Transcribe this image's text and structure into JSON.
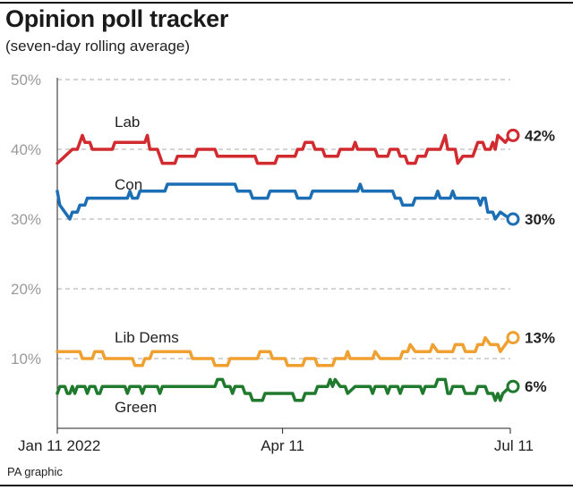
{
  "title": "Opinion poll tracker",
  "subtitle": "(seven-day rolling average)",
  "credit": "PA graphic",
  "chart_data": {
    "type": "line",
    "title": "Opinion poll tracker",
    "subtitle": "(seven-day rolling average)",
    "xlabel": "",
    "ylabel": "",
    "ylim": [
      0,
      50
    ],
    "y_ticks": [
      "50%",
      "40%",
      "30%",
      "20%",
      "10%"
    ],
    "y_tick_values": [
      50,
      40,
      30,
      20,
      10
    ],
    "x_ticks": [
      "Jan 11 2022",
      "Apr 11",
      "Jul 11"
    ],
    "x_tick_days": [
      0,
      90,
      181
    ],
    "x_range_days": [
      0,
      181
    ],
    "grid": "horizontal dashed",
    "legend": "inline labels",
    "series": [
      {
        "name": "Lab",
        "color": "#d12a2f",
        "end_label": "42%",
        "points": [
          [
            0,
            38
          ],
          [
            3,
            39
          ],
          [
            6,
            40
          ],
          [
            8,
            40
          ],
          [
            9,
            41
          ],
          [
            10,
            42
          ],
          [
            11,
            41
          ],
          [
            13,
            41
          ],
          [
            14,
            40
          ],
          [
            22,
            40
          ],
          [
            23,
            41
          ],
          [
            35,
            41
          ],
          [
            36,
            42
          ],
          [
            37,
            40
          ],
          [
            40,
            40
          ],
          [
            41,
            39
          ],
          [
            42,
            38
          ],
          [
            47,
            38
          ],
          [
            48,
            39
          ],
          [
            55,
            39
          ],
          [
            56,
            40
          ],
          [
            63,
            40
          ],
          [
            64,
            39
          ],
          [
            79,
            39
          ],
          [
            80,
            38
          ],
          [
            87,
            38
          ],
          [
            88,
            39
          ],
          [
            95,
            39
          ],
          [
            96,
            40
          ],
          [
            98,
            40
          ],
          [
            99,
            41
          ],
          [
            102,
            41
          ],
          [
            103,
            40
          ],
          [
            106,
            40
          ],
          [
            107,
            39
          ],
          [
            112,
            39
          ],
          [
            113,
            40
          ],
          [
            118,
            40
          ],
          [
            119,
            41
          ],
          [
            120,
            40
          ],
          [
            127,
            40
          ],
          [
            128,
            39
          ],
          [
            132,
            39
          ],
          [
            133,
            40
          ],
          [
            136,
            40
          ],
          [
            137,
            39
          ],
          [
            139,
            39
          ],
          [
            140,
            38
          ],
          [
            143,
            38
          ],
          [
            144,
            39
          ],
          [
            147,
            39
          ],
          [
            148,
            40
          ],
          [
            153,
            40
          ],
          [
            154,
            41
          ],
          [
            155,
            42
          ],
          [
            156,
            40
          ],
          [
            159,
            40
          ],
          [
            160,
            38
          ],
          [
            162,
            39
          ],
          [
            166,
            39
          ],
          [
            167,
            40
          ],
          [
            168,
            41
          ],
          [
            170,
            41
          ],
          [
            171,
            40
          ],
          [
            173,
            40
          ],
          [
            174,
            41
          ],
          [
            175,
            40
          ],
          [
            176,
            42
          ],
          [
            179,
            41
          ],
          [
            181,
            42
          ]
        ]
      },
      {
        "name": "Con",
        "color": "#1c6fb5",
        "end_label": "30%",
        "points": [
          [
            0,
            34
          ],
          [
            1,
            32
          ],
          [
            3,
            31
          ],
          [
            5,
            30
          ],
          [
            6,
            31
          ],
          [
            8,
            31
          ],
          [
            9,
            32
          ],
          [
            11,
            32
          ],
          [
            12,
            33
          ],
          [
            28,
            33
          ],
          [
            29,
            34
          ],
          [
            30,
            33
          ],
          [
            32,
            33
          ],
          [
            33,
            34
          ],
          [
            43,
            34
          ],
          [
            44,
            35
          ],
          [
            54,
            35
          ],
          [
            71,
            35
          ],
          [
            72,
            34
          ],
          [
            77,
            34
          ],
          [
            78,
            33
          ],
          [
            84,
            33
          ],
          [
            85,
            34
          ],
          [
            95,
            34
          ],
          [
            96,
            33
          ],
          [
            101,
            33
          ],
          [
            102,
            34
          ],
          [
            120,
            34
          ],
          [
            121,
            35
          ],
          [
            122,
            34
          ],
          [
            134,
            34
          ],
          [
            135,
            33
          ],
          [
            137,
            33
          ],
          [
            138,
            32
          ],
          [
            142,
            32
          ],
          [
            143,
            33
          ],
          [
            151,
            33
          ],
          [
            152,
            34
          ],
          [
            153,
            33
          ],
          [
            157,
            33
          ],
          [
            158,
            34
          ],
          [
            159,
            33
          ],
          [
            168,
            33
          ],
          [
            169,
            32
          ],
          [
            170,
            33
          ],
          [
            171,
            33
          ],
          [
            172,
            31
          ],
          [
            174,
            31
          ],
          [
            175,
            30
          ],
          [
            177,
            31
          ],
          [
            181,
            30
          ]
        ]
      },
      {
        "name": "Lib Dems",
        "color": "#f0a030",
        "end_label": "13%",
        "points": [
          [
            0,
            11
          ],
          [
            9,
            11
          ],
          [
            10,
            10
          ],
          [
            14,
            10
          ],
          [
            15,
            11
          ],
          [
            18,
            11
          ],
          [
            19,
            10
          ],
          [
            30,
            10
          ],
          [
            31,
            9
          ],
          [
            34,
            9
          ],
          [
            35,
            10
          ],
          [
            37,
            10
          ],
          [
            38,
            11
          ],
          [
            53,
            11
          ],
          [
            54,
            10
          ],
          [
            62,
            10
          ],
          [
            63,
            9
          ],
          [
            68,
            9
          ],
          [
            69,
            10
          ],
          [
            80,
            10
          ],
          [
            81,
            11
          ],
          [
            85,
            11
          ],
          [
            86,
            10
          ],
          [
            91,
            10
          ],
          [
            92,
            9
          ],
          [
            98,
            9
          ],
          [
            99,
            10
          ],
          [
            103,
            10
          ],
          [
            104,
            9
          ],
          [
            110,
            9
          ],
          [
            111,
            10
          ],
          [
            115,
            10
          ],
          [
            116,
            11
          ],
          [
            117,
            10
          ],
          [
            126,
            10
          ],
          [
            127,
            11
          ],
          [
            129,
            10
          ],
          [
            137,
            10
          ],
          [
            138,
            11
          ],
          [
            140,
            11
          ],
          [
            141,
            12
          ],
          [
            143,
            11
          ],
          [
            149,
            11
          ],
          [
            150,
            12
          ],
          [
            152,
            11
          ],
          [
            158,
            11
          ],
          [
            159,
            12
          ],
          [
            162,
            12
          ],
          [
            163,
            11
          ],
          [
            167,
            11
          ],
          [
            168,
            12
          ],
          [
            170,
            12
          ],
          [
            171,
            13
          ],
          [
            173,
            12
          ],
          [
            176,
            12
          ],
          [
            177,
            11
          ],
          [
            179,
            12
          ],
          [
            181,
            13
          ]
        ]
      },
      {
        "name": "Green",
        "color": "#1f7a2e",
        "end_label": "6%",
        "points": [
          [
            0,
            5
          ],
          [
            1,
            6
          ],
          [
            3,
            6
          ],
          [
            4,
            5
          ],
          [
            5,
            5
          ],
          [
            6,
            6
          ],
          [
            7,
            5
          ],
          [
            8,
            6
          ],
          [
            11,
            6
          ],
          [
            12,
            5
          ],
          [
            13,
            6
          ],
          [
            15,
            6
          ],
          [
            16,
            5
          ],
          [
            17,
            5
          ],
          [
            18,
            6
          ],
          [
            27,
            6
          ],
          [
            28,
            5
          ],
          [
            29,
            6
          ],
          [
            33,
            6
          ],
          [
            34,
            5
          ],
          [
            35,
            6
          ],
          [
            40,
            6
          ],
          [
            41,
            5
          ],
          [
            42,
            6
          ],
          [
            63,
            6
          ],
          [
            64,
            7
          ],
          [
            66,
            7
          ],
          [
            67,
            6
          ],
          [
            69,
            6
          ],
          [
            70,
            5
          ],
          [
            71,
            6
          ],
          [
            74,
            6
          ],
          [
            75,
            5
          ],
          [
            77,
            5
          ],
          [
            78,
            4
          ],
          [
            82,
            4
          ],
          [
            83,
            5
          ],
          [
            94,
            5
          ],
          [
            95,
            4
          ],
          [
            98,
            4
          ],
          [
            99,
            5
          ],
          [
            103,
            5
          ],
          [
            104,
            6
          ],
          [
            108,
            6
          ],
          [
            109,
            7
          ],
          [
            110,
            6
          ],
          [
            111,
            7
          ],
          [
            113,
            6
          ],
          [
            115,
            6
          ],
          [
            116,
            5
          ],
          [
            119,
            6
          ],
          [
            125,
            6
          ],
          [
            126,
            5
          ],
          [
            127,
            6
          ],
          [
            131,
            6
          ],
          [
            132,
            5
          ],
          [
            133,
            6
          ],
          [
            136,
            6
          ],
          [
            137,
            5
          ],
          [
            138,
            6
          ],
          [
            145,
            6
          ],
          [
            146,
            5
          ],
          [
            147,
            6
          ],
          [
            151,
            6
          ],
          [
            152,
            7
          ],
          [
            155,
            7
          ],
          [
            156,
            5
          ],
          [
            157,
            5
          ],
          [
            158,
            6
          ],
          [
            162,
            6
          ],
          [
            163,
            5
          ],
          [
            167,
            5
          ],
          [
            168,
            6
          ],
          [
            171,
            6
          ],
          [
            172,
            5
          ],
          [
            174,
            5
          ],
          [
            175,
            4
          ],
          [
            176,
            5
          ],
          [
            177,
            4
          ],
          [
            178,
            5
          ],
          [
            181,
            6
          ]
        ]
      }
    ]
  }
}
